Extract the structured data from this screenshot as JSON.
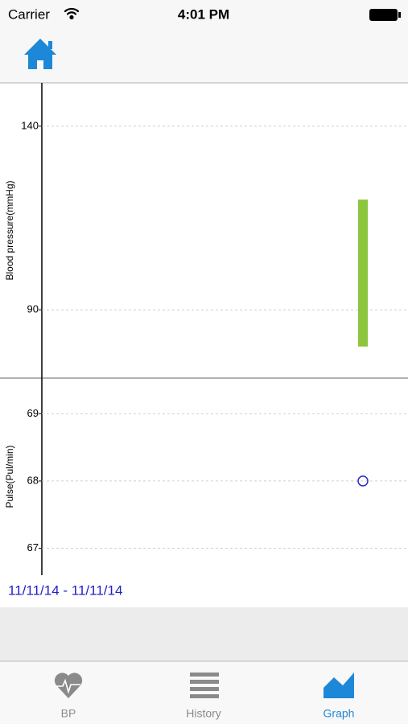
{
  "status_bar": {
    "carrier": "Carrier",
    "time": "4:01 PM"
  },
  "chart_data": [
    {
      "type": "range-bar",
      "y_label": "Blood pressure(mmHg)",
      "categories": [
        null
      ],
      "series": [
        {
          "color": "#8cc63f",
          "low": [
            80
          ],
          "high": [
            120
          ]
        }
      ],
      "ylim": [
        71.4,
        151.8
      ],
      "yticks": [
        90,
        140
      ],
      "grid": true
    },
    {
      "type": "scatter",
      "y_label": "Pulse(Pul/min)",
      "categories": [
        null
      ],
      "series": [
        {
          "color": "#2a2ad0",
          "values": [
            68
          ]
        }
      ],
      "ylim": [
        66.6,
        69.53
      ],
      "yticks": [
        67,
        68,
        69
      ],
      "grid": true
    }
  ],
  "date_range": "11/11/14 - 11/11/14",
  "tabs": [
    "BP",
    "History",
    "Graph"
  ]
}
